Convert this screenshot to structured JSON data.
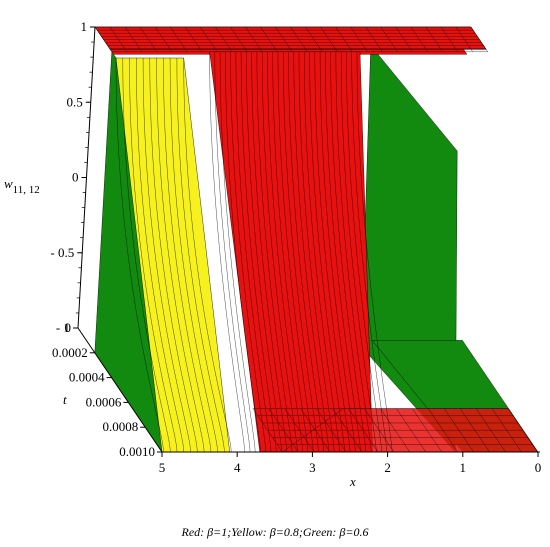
{
  "chart_data": {
    "type": "surface",
    "title": "",
    "zlabel_main": "w",
    "zlabel_sub": "11, 12",
    "xlabel": "x",
    "tlabel": "t",
    "xlim": [
      0,
      5
    ],
    "tlim": [
      0,
      0.001
    ],
    "zlim": [
      -1,
      1
    ],
    "z_ticks": [
      "1",
      "0.5",
      "0",
      "- 0.5",
      "- 1"
    ],
    "t_ticks": [
      "0",
      "0.0002",
      "0.0004",
      "0.0006",
      "0.0008",
      "0.0010"
    ],
    "x_ticks": [
      "5",
      "4",
      "3",
      "2",
      "1",
      "0"
    ],
    "grid": true,
    "series": [
      {
        "name": "β=1",
        "color": "#e8110f",
        "front_x": 3.7
      },
      {
        "name": "β=0.8",
        "color": "#f7f21f",
        "front_x": 4.1
      },
      {
        "name": "β=0.6",
        "color": "#128a10",
        "front_x": 1.5
      }
    ]
  },
  "caption": "Red: β=1;Yellow: β=0.8;Green: β=0.6"
}
